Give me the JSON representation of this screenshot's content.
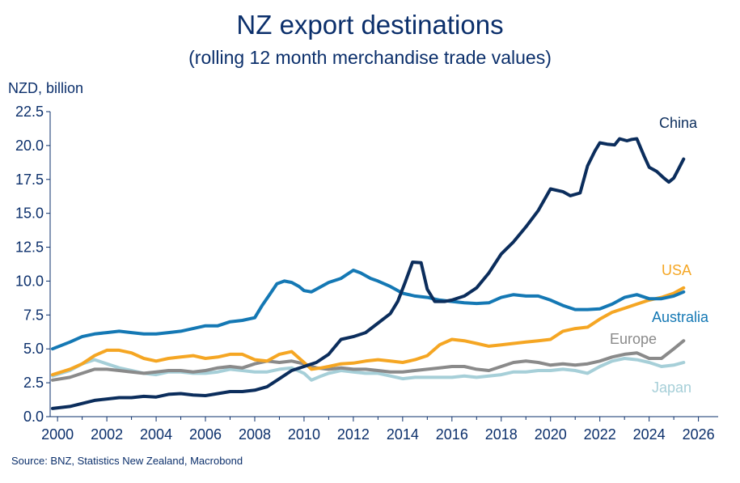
{
  "title": "NZ export destinations",
  "subtitle": "(rolling 12 month merchandise trade values)",
  "unit_label": "NZD, billion",
  "source": "Source: BNZ, Statistics New Zealand, Macrobond",
  "chart_data": {
    "type": "line",
    "title": "NZ export destinations",
    "ylabel": "NZD, billion",
    "xlim": [
      1999.7,
      2026.8
    ],
    "ylim": [
      0,
      22.5
    ],
    "xticks": [
      2000,
      2002,
      2004,
      2006,
      2008,
      2010,
      2012,
      2014,
      2016,
      2018,
      2020,
      2022,
      2024,
      2026
    ],
    "yticks": [
      0.0,
      2.5,
      5.0,
      7.5,
      10.0,
      12.5,
      15.0,
      17.5,
      20.0,
      22.5
    ],
    "ytick_labels": [
      "0.0",
      "2.5",
      "5.0",
      "7.5",
      "10.0",
      "12.5",
      "15.0",
      "17.5",
      "20.0",
      "22.5"
    ],
    "grid": false,
    "legend": "inline labels",
    "series": [
      {
        "name": "China",
        "color": "#0b2d5c",
        "points": [
          [
            1999.8,
            0.6
          ],
          [
            2000.5,
            0.75
          ],
          [
            2001.5,
            1.2
          ],
          [
            2002.5,
            1.4
          ],
          [
            2003.0,
            1.4
          ],
          [
            2003.5,
            1.5
          ],
          [
            2004.0,
            1.45
          ],
          [
            2004.5,
            1.65
          ],
          [
            2005.0,
            1.7
          ],
          [
            2005.5,
            1.6
          ],
          [
            2006.0,
            1.55
          ],
          [
            2006.5,
            1.7
          ],
          [
            2007.0,
            1.85
          ],
          [
            2007.5,
            1.85
          ],
          [
            2008.0,
            1.95
          ],
          [
            2008.5,
            2.2
          ],
          [
            2009.0,
            2.8
          ],
          [
            2009.5,
            3.4
          ],
          [
            2010.0,
            3.7
          ],
          [
            2010.5,
            4.0
          ],
          [
            2011.0,
            4.6
          ],
          [
            2011.5,
            5.7
          ],
          [
            2012.0,
            5.9
          ],
          [
            2012.5,
            6.2
          ],
          [
            2013.0,
            6.9
          ],
          [
            2013.5,
            7.6
          ],
          [
            2013.8,
            8.5
          ],
          [
            2014.1,
            9.9
          ],
          [
            2014.4,
            11.4
          ],
          [
            2014.75,
            11.35
          ],
          [
            2015.0,
            9.4
          ],
          [
            2015.3,
            8.5
          ],
          [
            2015.7,
            8.5
          ],
          [
            2016.0,
            8.6
          ],
          [
            2016.5,
            8.9
          ],
          [
            2017.0,
            9.5
          ],
          [
            2017.5,
            10.6
          ],
          [
            2018.0,
            12.0
          ],
          [
            2018.5,
            12.9
          ],
          [
            2019.0,
            14.0
          ],
          [
            2019.5,
            15.2
          ],
          [
            2020.0,
            16.8
          ],
          [
            2020.5,
            16.6
          ],
          [
            2020.8,
            16.3
          ],
          [
            2021.2,
            16.5
          ],
          [
            2021.5,
            18.5
          ],
          [
            2021.8,
            19.6
          ],
          [
            2022.0,
            20.2
          ],
          [
            2022.3,
            20.1
          ],
          [
            2022.6,
            20.05
          ],
          [
            2022.8,
            20.5
          ],
          [
            2023.1,
            20.35
          ],
          [
            2023.3,
            20.45
          ],
          [
            2023.5,
            20.5
          ],
          [
            2023.8,
            19.2
          ],
          [
            2024.0,
            18.4
          ],
          [
            2024.3,
            18.1
          ],
          [
            2024.6,
            17.6
          ],
          [
            2024.8,
            17.3
          ],
          [
            2025.0,
            17.6
          ],
          [
            2025.2,
            18.3
          ],
          [
            2025.4,
            19.0
          ]
        ]
      },
      {
        "name": "USA",
        "color": "#f5a623",
        "points": [
          [
            1999.8,
            3.1
          ],
          [
            2000.5,
            3.5
          ],
          [
            2001.0,
            3.9
          ],
          [
            2001.5,
            4.5
          ],
          [
            2002.0,
            4.9
          ],
          [
            2002.5,
            4.9
          ],
          [
            2003.0,
            4.7
          ],
          [
            2003.5,
            4.3
          ],
          [
            2004.0,
            4.1
          ],
          [
            2004.5,
            4.3
          ],
          [
            2005.0,
            4.4
          ],
          [
            2005.5,
            4.5
          ],
          [
            2006.0,
            4.3
          ],
          [
            2006.5,
            4.4
          ],
          [
            2007.0,
            4.6
          ],
          [
            2007.5,
            4.6
          ],
          [
            2008.0,
            4.2
          ],
          [
            2008.5,
            4.1
          ],
          [
            2009.0,
            4.6
          ],
          [
            2009.5,
            4.8
          ],
          [
            2010.0,
            4.0
          ],
          [
            2010.3,
            3.5
          ],
          [
            2010.7,
            3.6
          ],
          [
            2011.0,
            3.7
          ],
          [
            2011.5,
            3.9
          ],
          [
            2012.0,
            3.95
          ],
          [
            2012.5,
            4.1
          ],
          [
            2013.0,
            4.2
          ],
          [
            2013.5,
            4.1
          ],
          [
            2014.0,
            4.0
          ],
          [
            2014.5,
            4.2
          ],
          [
            2015.0,
            4.5
          ],
          [
            2015.5,
            5.3
          ],
          [
            2016.0,
            5.7
          ],
          [
            2016.5,
            5.6
          ],
          [
            2017.0,
            5.4
          ],
          [
            2017.5,
            5.2
          ],
          [
            2018.0,
            5.3
          ],
          [
            2018.5,
            5.4
          ],
          [
            2019.0,
            5.5
          ],
          [
            2019.5,
            5.6
          ],
          [
            2020.0,
            5.7
          ],
          [
            2020.5,
            6.3
          ],
          [
            2021.0,
            6.5
          ],
          [
            2021.5,
            6.6
          ],
          [
            2022.0,
            7.2
          ],
          [
            2022.5,
            7.7
          ],
          [
            2023.0,
            8.0
          ],
          [
            2023.5,
            8.3
          ],
          [
            2024.0,
            8.6
          ],
          [
            2024.5,
            8.8
          ],
          [
            2025.0,
            9.1
          ],
          [
            2025.4,
            9.5
          ]
        ]
      },
      {
        "name": "Australia",
        "color": "#1478b4",
        "points": [
          [
            1999.8,
            5.0
          ],
          [
            2000.5,
            5.5
          ],
          [
            2001.0,
            5.9
          ],
          [
            2001.5,
            6.1
          ],
          [
            2002.0,
            6.2
          ],
          [
            2002.5,
            6.3
          ],
          [
            2003.0,
            6.2
          ],
          [
            2003.5,
            6.1
          ],
          [
            2004.0,
            6.1
          ],
          [
            2004.5,
            6.2
          ],
          [
            2005.0,
            6.3
          ],
          [
            2005.5,
            6.5
          ],
          [
            2006.0,
            6.7
          ],
          [
            2006.5,
            6.7
          ],
          [
            2007.0,
            7.0
          ],
          [
            2007.5,
            7.1
          ],
          [
            2008.0,
            7.3
          ],
          [
            2008.3,
            8.2
          ],
          [
            2008.6,
            9.0
          ],
          [
            2008.9,
            9.8
          ],
          [
            2009.2,
            10.0
          ],
          [
            2009.5,
            9.9
          ],
          [
            2009.8,
            9.6
          ],
          [
            2010.0,
            9.3
          ],
          [
            2010.3,
            9.2
          ],
          [
            2010.7,
            9.6
          ],
          [
            2011.0,
            9.9
          ],
          [
            2011.5,
            10.2
          ],
          [
            2012.0,
            10.8
          ],
          [
            2012.3,
            10.6
          ],
          [
            2012.7,
            10.2
          ],
          [
            2013.0,
            10.0
          ],
          [
            2013.5,
            9.6
          ],
          [
            2014.0,
            9.1
          ],
          [
            2014.5,
            8.9
          ],
          [
            2015.0,
            8.8
          ],
          [
            2015.5,
            8.6
          ],
          [
            2016.0,
            8.5
          ],
          [
            2016.5,
            8.4
          ],
          [
            2017.0,
            8.35
          ],
          [
            2017.5,
            8.4
          ],
          [
            2018.0,
            8.8
          ],
          [
            2018.5,
            9.0
          ],
          [
            2019.0,
            8.9
          ],
          [
            2019.5,
            8.9
          ],
          [
            2020.0,
            8.6
          ],
          [
            2020.5,
            8.2
          ],
          [
            2021.0,
            7.9
          ],
          [
            2021.5,
            7.9
          ],
          [
            2022.0,
            7.95
          ],
          [
            2022.5,
            8.3
          ],
          [
            2023.0,
            8.8
          ],
          [
            2023.5,
            9.0
          ],
          [
            2024.0,
            8.7
          ],
          [
            2024.5,
            8.7
          ],
          [
            2025.0,
            8.9
          ],
          [
            2025.4,
            9.2
          ]
        ]
      },
      {
        "name": "Europe",
        "color": "#8a8a8a",
        "points": [
          [
            1999.8,
            2.7
          ],
          [
            2000.5,
            2.9
          ],
          [
            2001.0,
            3.2
          ],
          [
            2001.5,
            3.5
          ],
          [
            2002.0,
            3.5
          ],
          [
            2002.5,
            3.4
          ],
          [
            2003.0,
            3.3
          ],
          [
            2003.5,
            3.2
          ],
          [
            2004.0,
            3.3
          ],
          [
            2004.5,
            3.4
          ],
          [
            2005.0,
            3.4
          ],
          [
            2005.5,
            3.3
          ],
          [
            2006.0,
            3.4
          ],
          [
            2006.5,
            3.6
          ],
          [
            2007.0,
            3.7
          ],
          [
            2007.5,
            3.6
          ],
          [
            2008.0,
            3.9
          ],
          [
            2008.5,
            4.1
          ],
          [
            2009.0,
            4.0
          ],
          [
            2009.5,
            4.1
          ],
          [
            2010.0,
            3.9
          ],
          [
            2010.5,
            3.6
          ],
          [
            2011.0,
            3.5
          ],
          [
            2011.5,
            3.6
          ],
          [
            2012.0,
            3.5
          ],
          [
            2012.5,
            3.5
          ],
          [
            2013.0,
            3.4
          ],
          [
            2013.5,
            3.3
          ],
          [
            2014.0,
            3.3
          ],
          [
            2014.5,
            3.4
          ],
          [
            2015.0,
            3.5
          ],
          [
            2015.5,
            3.6
          ],
          [
            2016.0,
            3.7
          ],
          [
            2016.5,
            3.7
          ],
          [
            2017.0,
            3.5
          ],
          [
            2017.5,
            3.4
          ],
          [
            2018.0,
            3.7
          ],
          [
            2018.5,
            4.0
          ],
          [
            2019.0,
            4.1
          ],
          [
            2019.5,
            4.0
          ],
          [
            2020.0,
            3.8
          ],
          [
            2020.5,
            3.9
          ],
          [
            2021.0,
            3.8
          ],
          [
            2021.5,
            3.9
          ],
          [
            2022.0,
            4.1
          ],
          [
            2022.5,
            4.4
          ],
          [
            2023.0,
            4.6
          ],
          [
            2023.5,
            4.7
          ],
          [
            2024.0,
            4.3
          ],
          [
            2024.5,
            4.3
          ],
          [
            2025.0,
            5.0
          ],
          [
            2025.4,
            5.6
          ]
        ]
      },
      {
        "name": "Japan",
        "color": "#a6cfd8",
        "points": [
          [
            1999.8,
            3.0
          ],
          [
            2000.5,
            3.4
          ],
          [
            2001.0,
            3.9
          ],
          [
            2001.5,
            4.2
          ],
          [
            2002.0,
            3.9
          ],
          [
            2002.5,
            3.6
          ],
          [
            2003.0,
            3.4
          ],
          [
            2003.5,
            3.2
          ],
          [
            2004.0,
            3.1
          ],
          [
            2004.5,
            3.3
          ],
          [
            2005.0,
            3.3
          ],
          [
            2005.5,
            3.2
          ],
          [
            2006.0,
            3.2
          ],
          [
            2006.5,
            3.3
          ],
          [
            2007.0,
            3.5
          ],
          [
            2007.5,
            3.4
          ],
          [
            2008.0,
            3.3
          ],
          [
            2008.5,
            3.3
          ],
          [
            2009.0,
            3.5
          ],
          [
            2009.5,
            3.6
          ],
          [
            2010.0,
            3.2
          ],
          [
            2010.3,
            2.7
          ],
          [
            2010.7,
            3.0
          ],
          [
            2011.0,
            3.2
          ],
          [
            2011.5,
            3.4
          ],
          [
            2012.0,
            3.3
          ],
          [
            2012.5,
            3.2
          ],
          [
            2013.0,
            3.2
          ],
          [
            2013.5,
            3.0
          ],
          [
            2014.0,
            2.8
          ],
          [
            2014.5,
            2.9
          ],
          [
            2015.0,
            2.9
          ],
          [
            2015.5,
            2.9
          ],
          [
            2016.0,
            2.9
          ],
          [
            2016.5,
            3.0
          ],
          [
            2017.0,
            2.9
          ],
          [
            2017.5,
            3.0
          ],
          [
            2018.0,
            3.1
          ],
          [
            2018.5,
            3.3
          ],
          [
            2019.0,
            3.3
          ],
          [
            2019.5,
            3.4
          ],
          [
            2020.0,
            3.4
          ],
          [
            2020.5,
            3.5
          ],
          [
            2021.0,
            3.4
          ],
          [
            2021.5,
            3.2
          ],
          [
            2022.0,
            3.7
          ],
          [
            2022.5,
            4.1
          ],
          [
            2023.0,
            4.3
          ],
          [
            2023.5,
            4.2
          ],
          [
            2024.0,
            4.0
          ],
          [
            2024.5,
            3.7
          ],
          [
            2025.0,
            3.8
          ],
          [
            2025.4,
            4.0
          ]
        ]
      }
    ]
  }
}
